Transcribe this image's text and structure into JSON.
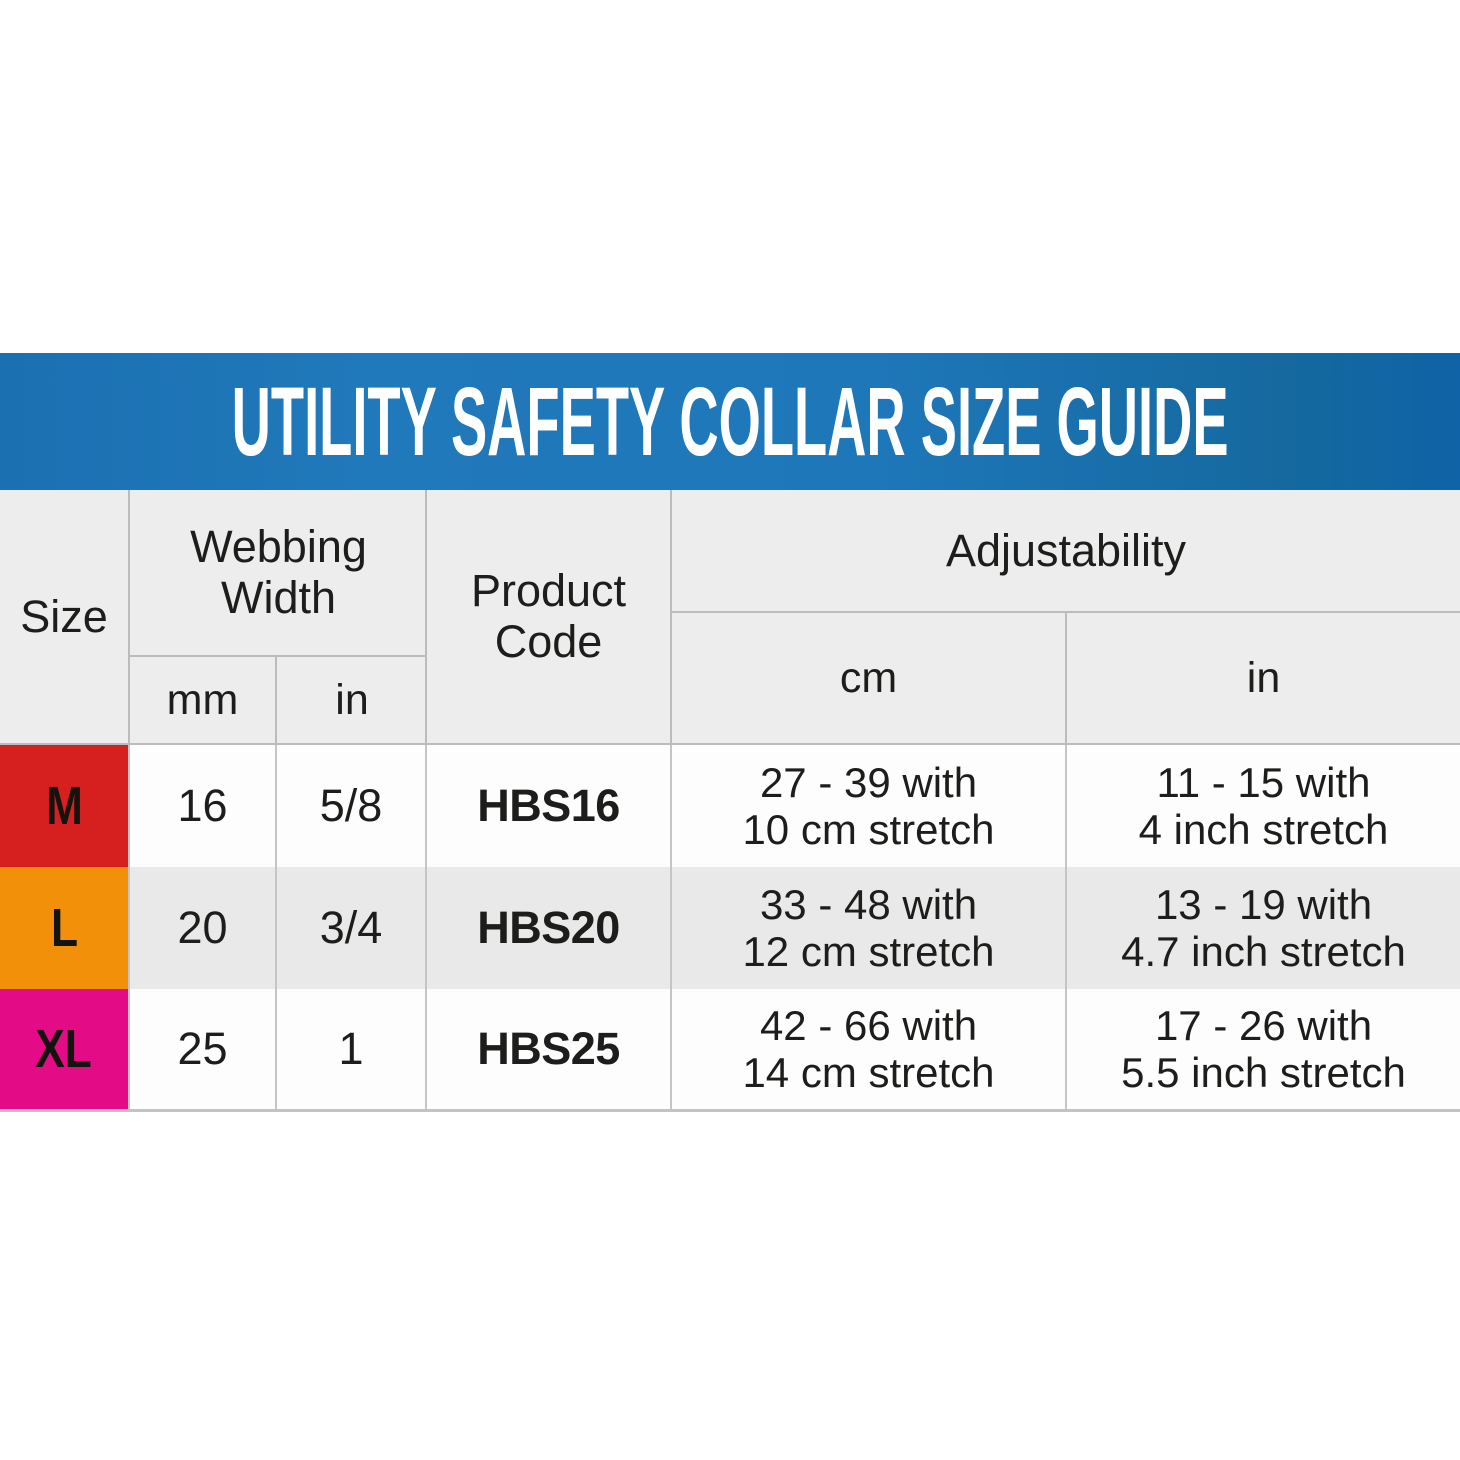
{
  "title": "UTILITY SAFETY COLLAR SIZE GUIDE",
  "chart_data": {
    "type": "table",
    "title": "UTILITY SAFETY COLLAR SIZE GUIDE",
    "header": {
      "size": "Size",
      "webbing_width": "Webbing Width",
      "webbing_mm": "mm",
      "webbing_in": "in",
      "product_code": "Product Code",
      "adjustability": "Adjustability",
      "adj_cm": "cm",
      "adj_in": "in"
    },
    "rows": [
      {
        "size": "M",
        "size_color": "#d6201f",
        "webbing_mm": "16",
        "webbing_in": "5/8",
        "product_code": "HBS16",
        "adj_cm_line1": "27 - 39 with",
        "adj_cm_line2": "10 cm stretch",
        "adj_in_line1": "11 - 15 with",
        "adj_in_line2": "4 inch stretch"
      },
      {
        "size": "L",
        "size_color": "#f29109",
        "webbing_mm": "20",
        "webbing_in": "3/4",
        "product_code": "HBS20",
        "adj_cm_line1": "33 - 48 with",
        "adj_cm_line2": "12 cm stretch",
        "adj_in_line1": "13 - 19 with",
        "adj_in_line2": "4.7 inch stretch"
      },
      {
        "size": "XL",
        "size_color": "#e40b86",
        "webbing_mm": "25",
        "webbing_in": "1",
        "product_code": "HBS25",
        "adj_cm_line1": "42 - 66 with",
        "adj_cm_line2": "14 cm stretch",
        "adj_in_line1": "17 - 26 with",
        "adj_in_line2": "5.5 inch stretch"
      }
    ]
  },
  "colors": {
    "banner_blue": "#1e77b9",
    "banner_blue_dark": "#0f63a6",
    "header_gray": "#ededed",
    "row_white": "#fdfdfd",
    "row_alt_gray": "#e9e9e9",
    "grid_line": "#bcbcbc",
    "size_m_red": "#d6201f",
    "size_l_orange": "#f29109",
    "size_xl_magenta": "#e40b86",
    "title_white": "#ffffff",
    "text_black": "#1d1d1b"
  }
}
